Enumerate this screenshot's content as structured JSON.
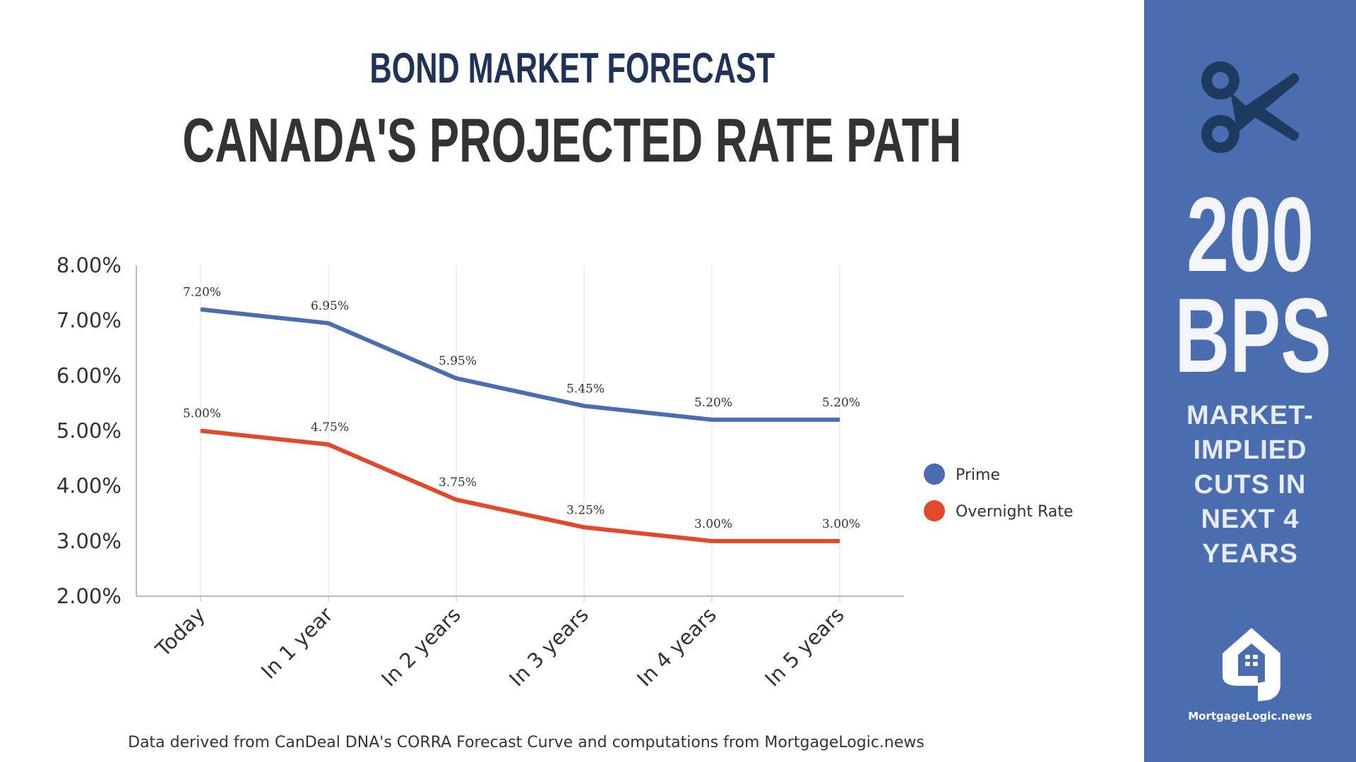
{
  "header": {
    "kicker": "BOND MARKET FORECAST",
    "title": "CANADA'S PROJECTED RATE PATH"
  },
  "chart_data": {
    "type": "line",
    "categories": [
      "Today",
      "In 1 year",
      "In 2 years",
      "In 3 years",
      "In 4 years",
      "In 5 years"
    ],
    "series": [
      {
        "name": "Prime",
        "values": [
          7.2,
          6.95,
          5.95,
          5.45,
          5.2,
          5.2
        ],
        "labels": [
          "7.20%",
          "6.95%",
          "5.95%",
          "5.45%",
          "5.20%",
          "5.20%"
        ],
        "color": "#4a6db0"
      },
      {
        "name": "Overnight Rate",
        "values": [
          5.0,
          4.75,
          3.75,
          3.25,
          3.0,
          3.0
        ],
        "labels": [
          "5.00%",
          "4.75%",
          "3.75%",
          "3.25%",
          "3.00%",
          "3.00%"
        ],
        "color": "#e04a2a"
      }
    ],
    "ylim": [
      2,
      8
    ],
    "yticks": [
      "2.00%",
      "3.00%",
      "4.00%",
      "5.00%",
      "6.00%",
      "7.00%",
      "8.00%"
    ],
    "grid": "vertical",
    "legend": "right"
  },
  "footer": {
    "source": "Data derived from CanDeal DNA's CORRA Forecast Curve and computations from MortgageLogic.news"
  },
  "sidebar": {
    "icon": "scissors-icon",
    "big_number": "200",
    "big_unit": "BPS",
    "lines": [
      "MARKET-",
      "IMPLIED",
      "CUTS IN",
      "NEXT 4",
      "YEARS"
    ],
    "logo_text": "MortgageLogic.news",
    "bg_color": "#4a6db0",
    "icon_color": "#1e3a5f"
  }
}
